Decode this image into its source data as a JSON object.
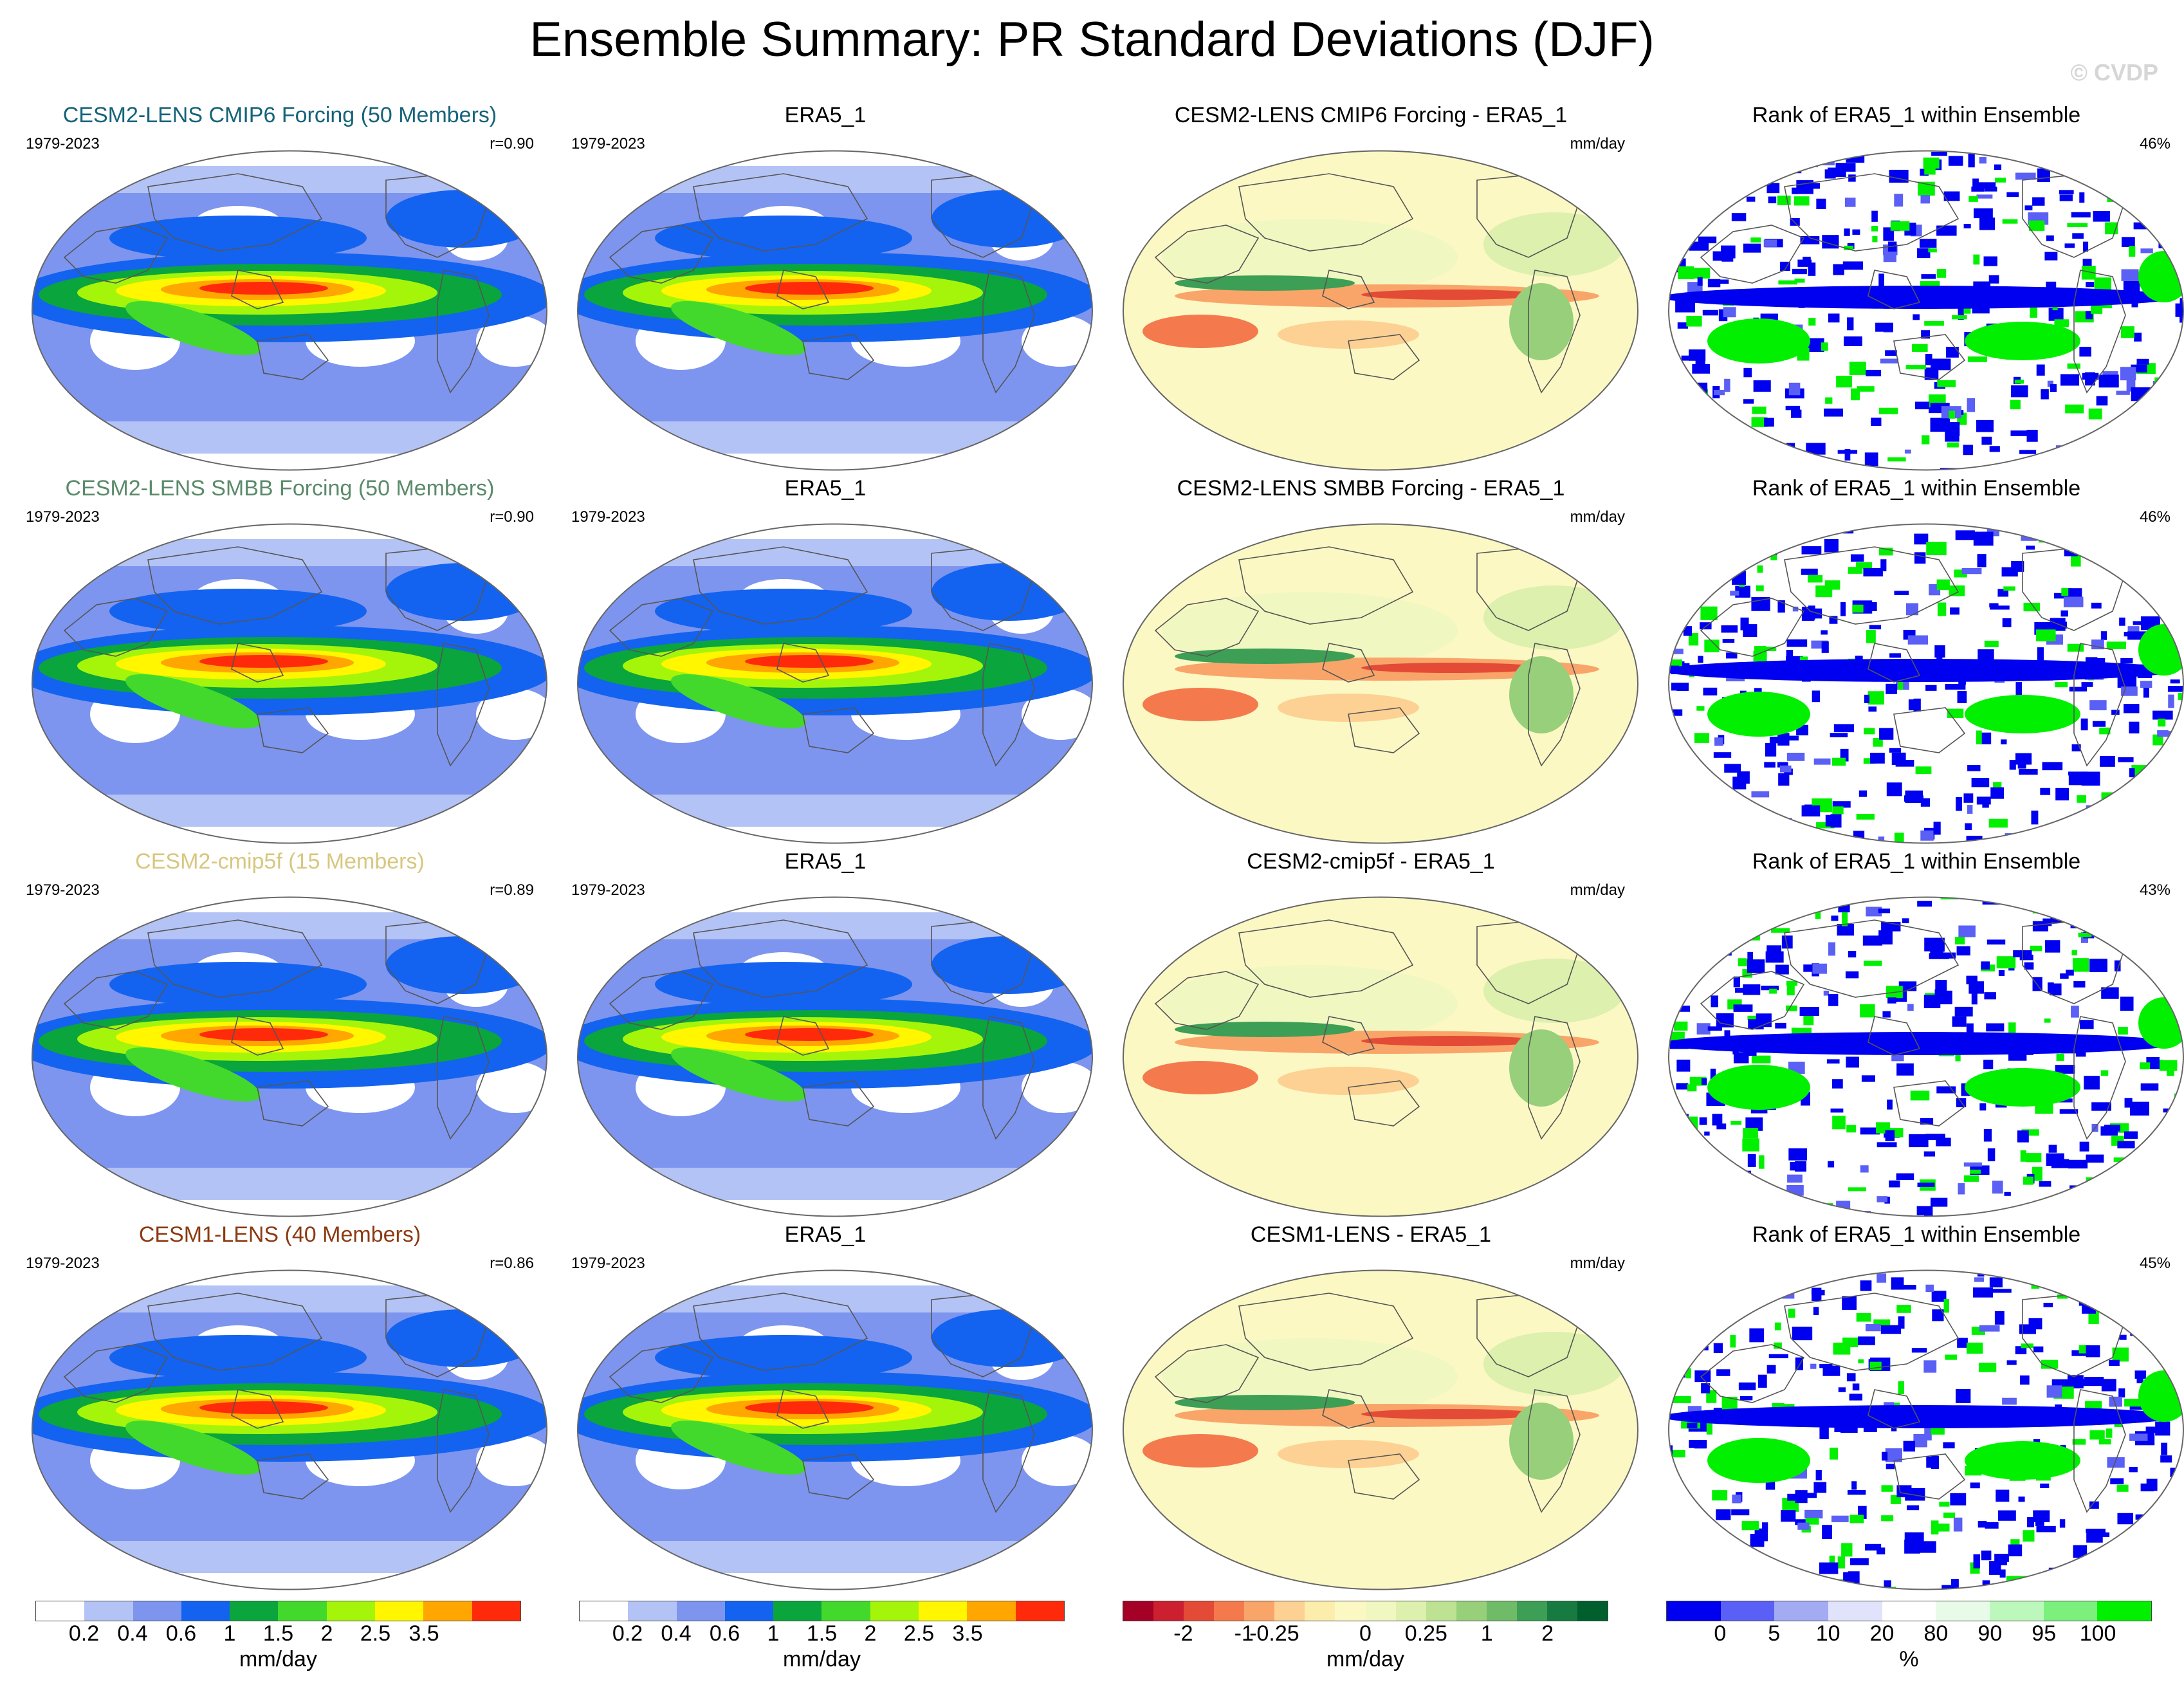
{
  "title": "Ensemble Summary: PR Standard Deviations (DJF)",
  "watermark": "© CVDP",
  "colors": {
    "std": [
      "#ffffff",
      "#b4c3f5",
      "#7d95ee",
      "#1363f0",
      "#0aa53c",
      "#43d92c",
      "#a5f50a",
      "#fff600",
      "#ffa600",
      "#ff2a0a"
    ],
    "diff": [
      "#a50026",
      "#cc2030",
      "#e34b36",
      "#f47a4d",
      "#f9a56a",
      "#fdd193",
      "#fdedac",
      "#fbf8c4",
      "#f1f7c1",
      "#ddf0ad",
      "#bde294",
      "#97cf7a",
      "#6fbb68",
      "#3d9e55",
      "#177a40",
      "#005f2d"
    ],
    "rank": [
      "#0000f0",
      "#5a5ff5",
      "#a3abf3",
      "#e0e3fb",
      "#ffffff",
      "#e8fbe8",
      "#bcf8bc",
      "#7cf07c",
      "#00f000"
    ]
  },
  "rows": [
    {
      "model": {
        "title": "CESM2-LENS CMIP6 Forcing (50 Members)",
        "title_color": "#15637a",
        "period": "1979-2023",
        "corr": "r=0.90"
      },
      "obs": {
        "title": "ERA5_1",
        "period": "1979-2023"
      },
      "diff": {
        "title": "CESM2-LENS CMIP6 Forcing - ERA5_1",
        "units": "mm/day"
      },
      "rank": {
        "title": "Rank of ERA5_1 within Ensemble",
        "pct": "46%"
      }
    },
    {
      "model": {
        "title": "CESM2-LENS SMBB Forcing (50 Members)",
        "title_color": "#5a8a6a",
        "period": "1979-2023",
        "corr": "r=0.90"
      },
      "obs": {
        "title": "ERA5_1",
        "period": "1979-2023"
      },
      "diff": {
        "title": "CESM2-LENS SMBB Forcing - ERA5_1",
        "units": "mm/day"
      },
      "rank": {
        "title": "Rank of ERA5_1 within Ensemble",
        "pct": "46%"
      }
    },
    {
      "model": {
        "title": "CESM2-cmip5f (15 Members)",
        "title_color": "#d7c77f",
        "period": "1979-2023",
        "corr": "r=0.89"
      },
      "obs": {
        "title": "ERA5_1",
        "period": "1979-2023"
      },
      "diff": {
        "title": "CESM2-cmip5f - ERA5_1",
        "units": "mm/day"
      },
      "rank": {
        "title": "Rank of ERA5_1 within Ensemble",
        "pct": "43%"
      }
    },
    {
      "model": {
        "title": "CESM1-LENS (40 Members)",
        "title_color": "#8c3a12",
        "period": "1979-2023",
        "corr": "r=0.86"
      },
      "obs": {
        "title": "ERA5_1",
        "period": "1979-2023"
      },
      "diff": {
        "title": "CESM1-LENS - ERA5_1",
        "units": "mm/day"
      },
      "rank": {
        "title": "Rank of ERA5_1 within Ensemble",
        "pct": "45%"
      }
    }
  ],
  "colorbars": [
    {
      "ticks": [
        "0.2",
        "0.4",
        "0.6",
        "1",
        "1.5",
        "2",
        "2.5",
        "3.5"
      ],
      "units": "mm/day"
    },
    {
      "ticks": [
        "0.2",
        "0.4",
        "0.6",
        "1",
        "1.5",
        "2",
        "2.5",
        "3.5"
      ],
      "units": "mm/day"
    },
    {
      "ticks": [
        "-2",
        "-1",
        "-0.25",
        "0",
        "0.25",
        "1",
        "2"
      ],
      "units": "mm/day"
    },
    {
      "ticks": [
        "0",
        "5",
        "10",
        "20",
        "80",
        "90",
        "95",
        "100"
      ],
      "units": "%"
    }
  ]
}
